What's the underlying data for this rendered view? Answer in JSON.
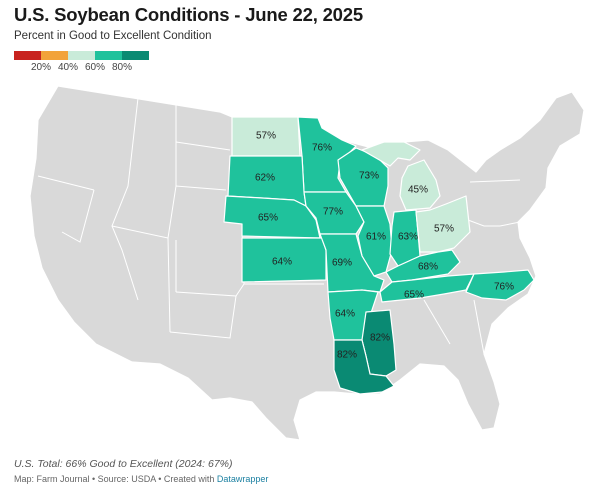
{
  "title": "U.S. Soybean Conditions - June 22, 2025",
  "subtitle": "Percent in Good to Excellent Condition",
  "legend": {
    "colors": [
      "#c8231f",
      "#f2a33a",
      "#c9ebd9",
      "#1fc29c",
      "#0a8a73"
    ],
    "ticks": [
      "20%",
      "40%",
      "60%",
      "80%"
    ]
  },
  "map": {
    "base_color": "#d9d9d9",
    "states": [
      {
        "state": "North Dakota",
        "value": 57,
        "label": "57%",
        "color": "#c9ebd9"
      },
      {
        "state": "Minnesota",
        "value": 76,
        "label": "76%",
        "color": "#1fc29c"
      },
      {
        "state": "South Dakota",
        "value": 62,
        "label": "62%",
        "color": "#1fc29c"
      },
      {
        "state": "Wisconsin",
        "value": 73,
        "label": "73%",
        "color": "#1fc29c"
      },
      {
        "state": "Michigan",
        "value": 45,
        "label": "45%",
        "color": "#c9ebd9"
      },
      {
        "state": "Nebraska",
        "value": 65,
        "label": "65%",
        "color": "#1fc29c"
      },
      {
        "state": "Iowa",
        "value": 77,
        "label": "77%",
        "color": "#1fc29c"
      },
      {
        "state": "Illinois",
        "value": 61,
        "label": "61%",
        "color": "#1fc29c"
      },
      {
        "state": "Indiana",
        "value": 63,
        "label": "63%",
        "color": "#1fc29c"
      },
      {
        "state": "Ohio",
        "value": 57,
        "label": "57%",
        "color": "#c9ebd9"
      },
      {
        "state": "Kansas",
        "value": 64,
        "label": "64%",
        "color": "#1fc29c"
      },
      {
        "state": "Missouri",
        "value": 69,
        "label": "69%",
        "color": "#1fc29c"
      },
      {
        "state": "Kentucky",
        "value": 68,
        "label": "68%",
        "color": "#1fc29c"
      },
      {
        "state": "Tennessee",
        "value": 65,
        "label": "65%",
        "color": "#1fc29c"
      },
      {
        "state": "North Carolina",
        "value": 76,
        "label": "76%",
        "color": "#1fc29c"
      },
      {
        "state": "Arkansas",
        "value": 64,
        "label": "64%",
        "color": "#1fc29c"
      },
      {
        "state": "Mississippi",
        "value": 82,
        "label": "82%",
        "color": "#0a8a73"
      },
      {
        "state": "Louisiana",
        "value": 82,
        "label": "82%",
        "color": "#0a8a73"
      }
    ]
  },
  "footnote": "U.S. Total: 66% Good to Excellent (2024: 67%)",
  "credits": {
    "text": "Map: Farm Journal • Source: USDA • Created with ",
    "link": "Datawrapper"
  }
}
